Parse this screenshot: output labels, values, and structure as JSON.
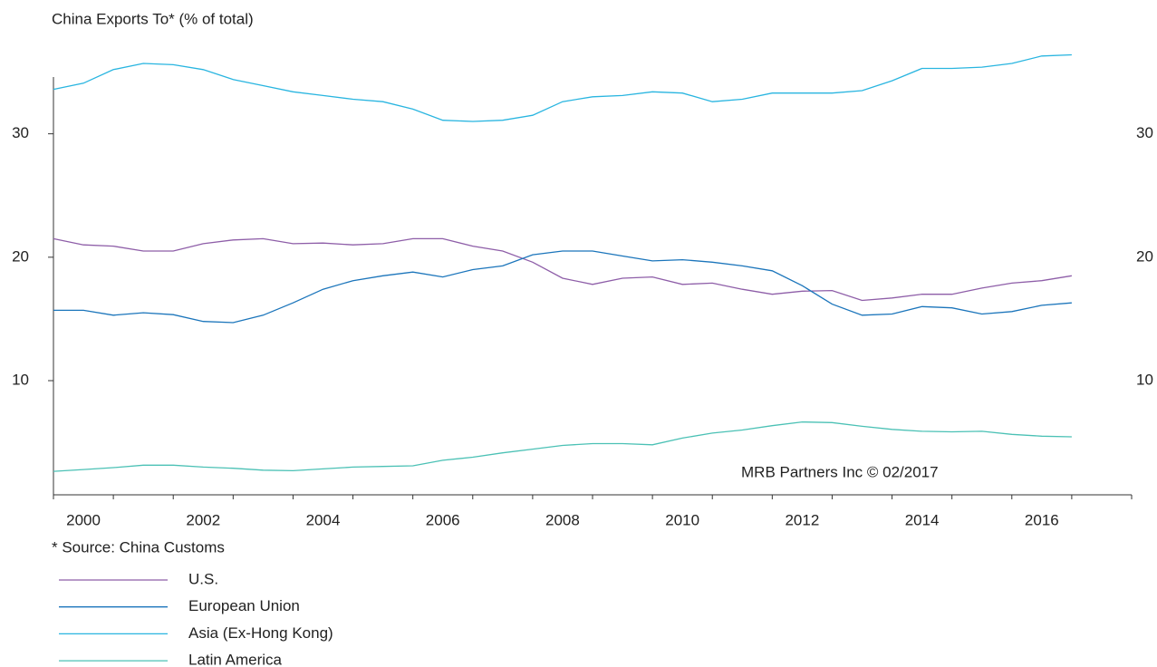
{
  "chart_data": {
    "type": "line",
    "title": "China Exports To* (% of total)",
    "source": "* Source: China Customs",
    "annotation": "MRB Partners Inc © 02/2017",
    "x": [
      2000,
      2000.5,
      2001,
      2001.5,
      2002,
      2002.5,
      2003,
      2003.5,
      2004,
      2004.5,
      2005,
      2005.5,
      2006,
      2006.5,
      2007,
      2007.5,
      2008,
      2008.5,
      2009,
      2009.5,
      2010,
      2010.5,
      2011,
      2011.5,
      2012,
      2012.5,
      2013,
      2013.5,
      2014,
      2014.5,
      2015,
      2015.5,
      2016,
      2016.5,
      2017
    ],
    "series": [
      {
        "name": "U.S.",
        "color": "#8e5ea8",
        "values": [
          21.5,
          21.0,
          20.9,
          20.5,
          20.5,
          21.1,
          21.4,
          21.5,
          21.1,
          21.15,
          21.0,
          21.1,
          21.5,
          21.5,
          20.9,
          20.5,
          19.6,
          18.3,
          17.8,
          18.3,
          18.4,
          17.8,
          17.9,
          17.4,
          17.0,
          17.25,
          17.3,
          16.5,
          16.7,
          17.0,
          17.0,
          17.5,
          17.9,
          18.1,
          18.5
        ]
      },
      {
        "name": "European Union",
        "color": "#1b75bb",
        "values": [
          15.7,
          15.7,
          15.3,
          15.5,
          15.35,
          14.8,
          14.7,
          15.3,
          16.3,
          17.4,
          18.1,
          18.5,
          18.8,
          18.4,
          19.0,
          19.3,
          20.2,
          20.5,
          20.5,
          20.1,
          19.7,
          19.8,
          19.6,
          19.3,
          18.9,
          17.7,
          16.2,
          15.3,
          15.4,
          16.0,
          15.9,
          15.4,
          15.6,
          16.1,
          16.3
        ]
      },
      {
        "name": "Asia (Ex-Hong Kong)",
        "color": "#29b5e0",
        "values": [
          33.6,
          34.1,
          35.2,
          35.7,
          35.6,
          35.2,
          34.4,
          33.9,
          33.4,
          33.1,
          32.8,
          32.6,
          32.0,
          31.1,
          31.0,
          31.1,
          31.5,
          32.6,
          33.0,
          33.1,
          33.4,
          33.3,
          32.6,
          32.8,
          33.3,
          33.3,
          33.3,
          33.5,
          34.3,
          35.3,
          35.3,
          35.4,
          35.7,
          36.3,
          36.4
        ]
      },
      {
        "name": "Latin America",
        "color": "#4bc1b5",
        "values": [
          2.65,
          2.8,
          2.95,
          3.15,
          3.15,
          3.0,
          2.9,
          2.75,
          2.7,
          2.85,
          3.0,
          3.05,
          3.1,
          3.55,
          3.8,
          4.15,
          4.45,
          4.75,
          4.9,
          4.9,
          4.8,
          5.35,
          5.75,
          6.0,
          6.35,
          6.65,
          6.6,
          6.3,
          6.05,
          5.9,
          5.85,
          5.9,
          5.65,
          5.5,
          5.45
        ]
      }
    ],
    "xlim": [
      2000,
      2018
    ],
    "xticks": [
      {
        "value": 2000.5,
        "label": "2000"
      },
      {
        "value": 2002.5,
        "label": "2002"
      },
      {
        "value": 2004.5,
        "label": "2004"
      },
      {
        "value": 2006.5,
        "label": "2006"
      },
      {
        "value": 2008.5,
        "label": "2008"
      },
      {
        "value": 2010.5,
        "label": "2010"
      },
      {
        "value": 2012.5,
        "label": "2012"
      },
      {
        "value": 2014.5,
        "label": "2014"
      },
      {
        "value": 2016.5,
        "label": "2016"
      }
    ],
    "xminorticks": [
      2000,
      2001,
      2002,
      2003,
      2004,
      2005,
      2006,
      2007,
      2008,
      2009,
      2010,
      2011,
      2012,
      2013,
      2014,
      2015,
      2016,
      2017,
      2018
    ],
    "ylim": [
      0.75,
      34.6
    ],
    "yticks": [
      10,
      20,
      30
    ],
    "y2lim": [
      0.75,
      34.6
    ],
    "y2ticks": [
      10,
      20,
      30
    ],
    "grid": false,
    "legend": "bottom-left"
  }
}
